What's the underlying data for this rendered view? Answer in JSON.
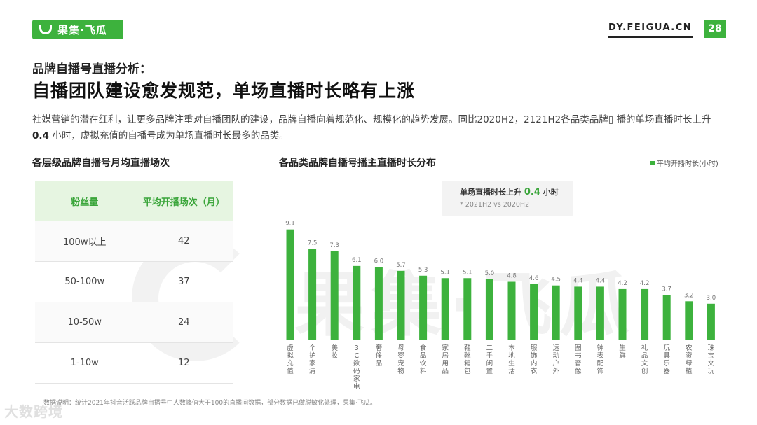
{
  "header": {
    "logo_text": "果集·飞瓜",
    "site": "DY.FEIGUA.CN",
    "page_number": "28"
  },
  "subtitle": "品牌自播号直播分析：",
  "title": "自播团队建设愈发规范，单场直播时长略有上涨",
  "description": {
    "part1": "社媒营销的潜在红利，让更多品牌注重对自播团队的建设，品牌自播向着规范化、规模化的趋势发展。同比2020H2，2121H2各品类品牌",
    "part2": "播的单场直播时长上升",
    "highlight": "0.4",
    "part3": "小时，虚拟充值的自播号成为单场直播时长最多的品类。"
  },
  "left_section": {
    "title": "各层级品牌自播号月均直播场次",
    "table": {
      "headers": [
        "粉丝量",
        "平均开播场次（月）"
      ],
      "rows": [
        [
          "100w以上",
          "42"
        ],
        [
          "50-100w",
          "37"
        ],
        [
          "10-50w",
          "24"
        ],
        [
          "1-10w",
          "12"
        ]
      ]
    }
  },
  "right_section": {
    "title": "各品类品牌自播号播主直播时长分布",
    "legend": "平均开播时长(小时)",
    "callout": {
      "main_prefix": "单场直播时长上升",
      "main_value": "0.4",
      "main_suffix": "小时",
      "sub": "* 2021H2 vs 2020H2"
    }
  },
  "chart_data": {
    "type": "bar",
    "title": "各品类品牌自播号播主直播时长分布",
    "categories": [
      "虚拟充值",
      "个护家清",
      "美妆",
      "3C数码家电",
      "奢侈品",
      "母婴宠物",
      "食品饮料",
      "家居用品",
      "鞋靴箱包",
      "二手闲置",
      "本地生活",
      "服饰内衣",
      "运动户外",
      "图书音像",
      "钟表配饰",
      "生鲜",
      "礼品文创",
      "玩具乐器",
      "农资绿植",
      "珠宝文玩"
    ],
    "series": [
      {
        "name": "平均开播时长(小时)",
        "values": [
          9.1,
          7.5,
          7.3,
          6.1,
          6.0,
          5.7,
          5.3,
          5.1,
          5.1,
          5.0,
          4.8,
          4.6,
          4.5,
          4.4,
          4.4,
          4.2,
          4.2,
          3.7,
          3.2,
          3.0
        ]
      }
    ],
    "ylim": [
      0,
      10
    ],
    "grid": false,
    "legend_position": "top-right",
    "bar_color": "#3db23d"
  },
  "footnote": "数据说明：统计2021年抖音活跃品牌自播号中人数峰值大于100的直播间数据，部分数据已做脱敏化处理，果集·飞瓜。",
  "watermark_bottom": "大数跨境",
  "watermark_center": "果集·飞瓜"
}
